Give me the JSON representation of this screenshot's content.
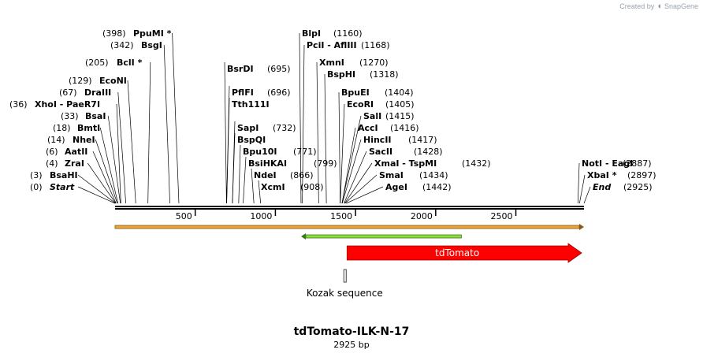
{
  "brand": {
    "created_by": "Created by",
    "app": "SnapGene"
  },
  "map": {
    "name": "tdTomato-ILK-N-17",
    "length_label": "2925 bp",
    "length": 2925
  },
  "axis": {
    "ticks": [
      500,
      1000,
      1500,
      2000,
      2500
    ]
  },
  "sites": [
    {
      "label": "Start",
      "pos_label": "(0)",
      "bp": 0,
      "italic": true
    },
    {
      "label": "BsaHI",
      "pos_label": "(3)",
      "bp": 3
    },
    {
      "label": "ZraI",
      "pos_label": "(4)",
      "bp": 4
    },
    {
      "label": "AatII",
      "pos_label": "(6)",
      "bp": 6
    },
    {
      "label": "NheI",
      "pos_label": "(14)",
      "bp": 14
    },
    {
      "label": "BmtI",
      "pos_label": "(18)",
      "bp": 18
    },
    {
      "label": "BsaI",
      "pos_label": "(33)",
      "bp": 33
    },
    {
      "label": "XhoI  -  PaeR7I",
      "pos_label": "(36)",
      "bp": 36
    },
    {
      "label": "DraIII",
      "pos_label": "(67)",
      "bp": 67
    },
    {
      "label": "EcoNI",
      "pos_label": "(129)",
      "bp": 129
    },
    {
      "label": "BclI *",
      "pos_label": "(205)",
      "bp": 205
    },
    {
      "label": "BsgI",
      "pos_label": "(342)",
      "bp": 342
    },
    {
      "label": "PpuMI *",
      "pos_label": "(398)",
      "bp": 398
    },
    {
      "label": "BsrDI",
      "pos_label": "(695)",
      "bp": 695
    },
    {
      "label": "PflFI",
      "pos_label": "(696)",
      "bp": 696
    },
    {
      "label": "Tth111I",
      "pos_label": "",
      "bp": 696
    },
    {
      "label": "SapI",
      "pos_label": "(732)",
      "bp": 732
    },
    {
      "label": "BspQI",
      "pos_label": "",
      "bp": 732
    },
    {
      "label": "Bpu10I",
      "pos_label": "(771)",
      "bp": 771
    },
    {
      "label": "BsiHKAI",
      "pos_label": "(799)",
      "bp": 799
    },
    {
      "label": "NdeI",
      "pos_label": "(866)",
      "bp": 866
    },
    {
      "label": "XcmI",
      "pos_label": "(908)",
      "bp": 908
    },
    {
      "label": "BlpI",
      "pos_label": "(1160)",
      "bp": 1160
    },
    {
      "label": "PciI  -  AflIII",
      "pos_label": "(1168)",
      "bp": 1168
    },
    {
      "label": "XmnI",
      "pos_label": "(1270)",
      "bp": 1270
    },
    {
      "label": "BspHI",
      "pos_label": "(1318)",
      "bp": 1318
    },
    {
      "label": "BpuEI",
      "pos_label": "(1404)",
      "bp": 1404
    },
    {
      "label": "EcoRI",
      "pos_label": "(1405)",
      "bp": 1405
    },
    {
      "label": "SalI",
      "pos_label": "(1415)",
      "bp": 1415
    },
    {
      "label": "AccI",
      "pos_label": "(1416)",
      "bp": 1416
    },
    {
      "label": "HincII",
      "pos_label": "(1417)",
      "bp": 1417
    },
    {
      "label": "SacII",
      "pos_label": "(1428)",
      "bp": 1428
    },
    {
      "label": "XmaI  -  TspMI",
      "pos_label": "(1432)",
      "bp": 1432
    },
    {
      "label": "SmaI",
      "pos_label": "(1434)",
      "bp": 1434
    },
    {
      "label": "AgeI",
      "pos_label": "(1442)",
      "bp": 1442
    },
    {
      "label": "NotI  -  EagI",
      "pos_label": "(2887)",
      "bp": 2887
    },
    {
      "label": "XbaI *",
      "pos_label": "(2897)",
      "bp": 2897
    },
    {
      "label": "End",
      "pos_label": "(2925)",
      "bp": 2925,
      "italic": true
    }
  ],
  "features": [
    {
      "name": "",
      "start": 0,
      "end": 2925,
      "type": "thin-arrow",
      "fill": "#e8a33c",
      "stroke": "#8a5a12"
    },
    {
      "name": "",
      "start": 1160,
      "end": 2160,
      "type": "thin-arrow-left",
      "fill": "#8fdc3c",
      "stroke": "#3b7a1a"
    },
    {
      "name": "tdTomato",
      "start": 1442,
      "end": 2925,
      "type": "arrow",
      "fill": "#ff0000",
      "stroke": "#9a0000"
    },
    {
      "name": "Kozak sequence",
      "start": 1432,
      "end": 1442,
      "type": "box",
      "fill": "#ffffff",
      "stroke": "#444444"
    }
  ]
}
